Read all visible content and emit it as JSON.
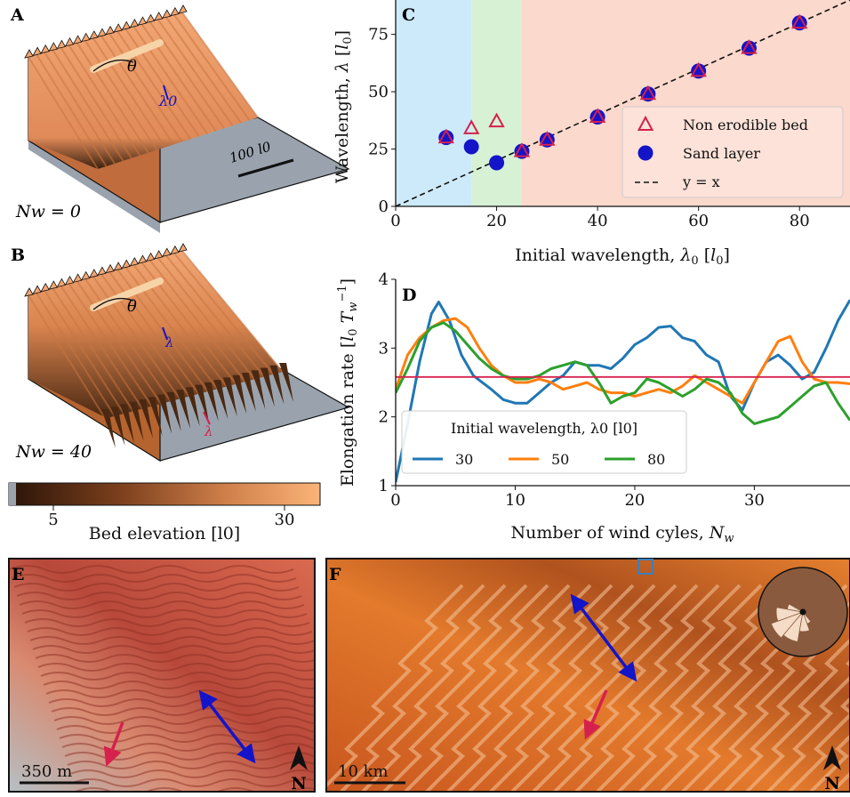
{
  "panels": {
    "a": {
      "label": "A",
      "theta": "θ",
      "lambda0": "λ0",
      "scalebar": "100 l0",
      "nw": "Nw = 0"
    },
    "b": {
      "label": "B",
      "theta": "θ",
      "lambda1": "λ",
      "lambda2": "λ",
      "nw": "Nw = 40"
    },
    "colorbar": {
      "label": "Bed elevation [l0]",
      "tick_low": "5",
      "tick_high": "30"
    },
    "e": {
      "label": "E",
      "scalebar": "350 m",
      "north": "N"
    },
    "f": {
      "label": "F",
      "scalebar": "10 km",
      "north": "N"
    }
  },
  "colors": {
    "nonerodible": "#d6214d",
    "sand": "#1414c8",
    "line30": "#1f77b4",
    "line50": "#ff7f0e",
    "line80": "#2ca02c",
    "mean": "#d6214d",
    "region1": "#cdeafb",
    "region2": "#d6f1d4",
    "region3": "#fbd9cc"
  },
  "chart_data": [
    {
      "panel": "C",
      "type": "scatter",
      "xlabel": "Initial wavelength, λ0 [l0]",
      "ylabel": "Wavelength, λ [l0]",
      "xlim": [
        0,
        90
      ],
      "ylim": [
        0,
        90
      ],
      "xticks": [
        "0",
        "20",
        "40",
        "60",
        "80"
      ],
      "yticks": [
        "0",
        "25",
        "50",
        "75"
      ],
      "regions": [
        [
          0,
          15
        ],
        [
          15,
          25
        ],
        [
          25,
          90
        ]
      ],
      "series": [
        {
          "name": "Non erodible bed",
          "x": [
            10,
            15,
            20,
            25,
            30,
            40,
            50,
            60,
            70,
            80
          ],
          "y": [
            30,
            34,
            37,
            24,
            29,
            39,
            49,
            59,
            69,
            80
          ]
        },
        {
          "name": "Sand layer",
          "x": [
            10,
            15,
            20,
            25,
            30,
            40,
            50,
            60,
            70,
            80
          ],
          "y": [
            30,
            26,
            19,
            24,
            29,
            39,
            49,
            59,
            69,
            80
          ]
        },
        {
          "name": "y = x",
          "x": [
            0,
            90
          ],
          "y": [
            0,
            90
          ]
        }
      ],
      "legend": "bottom-right"
    },
    {
      "panel": "D",
      "type": "line",
      "xlabel": "Number of wind cyles, Nw",
      "ylabel": "Elongation rate [l0 Tw−1]",
      "xlim": [
        0,
        38
      ],
      "ylim": [
        1,
        4
      ],
      "xticks": [
        "0",
        "10",
        "20",
        "30"
      ],
      "yticks": [
        "1",
        "2",
        "3",
        "4"
      ],
      "mean_value": 2.58,
      "legend_title": "Initial wavelength, λ0 [l0]",
      "legend": "lower-left",
      "series": [
        {
          "name": "30",
          "x": [
            0,
            1,
            2,
            3,
            3.6,
            4.5,
            5.5,
            6.5,
            8,
            9,
            10,
            11,
            12,
            13,
            14,
            15,
            16,
            17,
            18,
            19,
            20,
            21,
            22,
            23,
            24,
            25,
            26,
            27,
            28,
            29,
            30,
            31,
            32,
            33,
            34,
            35,
            36,
            37,
            38
          ],
          "y": [
            1.05,
            1.9,
            2.8,
            3.5,
            3.67,
            3.4,
            2.9,
            2.6,
            2.4,
            2.25,
            2.2,
            2.2,
            2.35,
            2.5,
            2.6,
            2.8,
            2.75,
            2.75,
            2.7,
            2.85,
            3.05,
            3.15,
            3.3,
            3.32,
            3.15,
            3.1,
            2.9,
            2.8,
            2.3,
            2.1,
            2.5,
            2.8,
            2.9,
            2.75,
            2.55,
            2.65,
            3.0,
            3.4,
            3.7
          ]
        },
        {
          "name": "50",
          "x": [
            0,
            1,
            2,
            3,
            4,
            5,
            6,
            7,
            8,
            9,
            10,
            11,
            12,
            13,
            14,
            15,
            16,
            17,
            18,
            19,
            20,
            21,
            22,
            23,
            24,
            25,
            26,
            27,
            28,
            29,
            30,
            31,
            32,
            33,
            34,
            35,
            36,
            37,
            38
          ],
          "y": [
            2.4,
            2.9,
            3.15,
            3.3,
            3.4,
            3.43,
            3.3,
            3.0,
            2.75,
            2.6,
            2.5,
            2.5,
            2.55,
            2.5,
            2.4,
            2.45,
            2.5,
            2.4,
            2.35,
            2.35,
            2.3,
            2.35,
            2.4,
            2.35,
            2.45,
            2.6,
            2.5,
            2.4,
            2.3,
            2.2,
            2.5,
            2.8,
            3.1,
            3.17,
            2.8,
            2.55,
            2.5,
            2.5,
            2.48
          ]
        },
        {
          "name": "80",
          "x": [
            0,
            1,
            2,
            3,
            4,
            5,
            6,
            7,
            8,
            9,
            10,
            11,
            12,
            13,
            14,
            15,
            16,
            17,
            18,
            19,
            20,
            21,
            22,
            23,
            24,
            25,
            26,
            27,
            28,
            29,
            30,
            31,
            32,
            33,
            34,
            35,
            36,
            37,
            38
          ],
          "y": [
            2.35,
            2.7,
            3.1,
            3.3,
            3.37,
            3.25,
            3.05,
            2.85,
            2.7,
            2.6,
            2.55,
            2.55,
            2.6,
            2.7,
            2.75,
            2.8,
            2.75,
            2.5,
            2.2,
            2.3,
            2.35,
            2.55,
            2.5,
            2.4,
            2.3,
            2.4,
            2.55,
            2.5,
            2.35,
            2.05,
            1.9,
            1.95,
            2.0,
            2.15,
            2.3,
            2.45,
            2.5,
            2.2,
            1.95
          ]
        }
      ]
    },
    {
      "panel": "colorbar",
      "type": "heatmap",
      "range": [
        0,
        35
      ],
      "ticks": [
        "5",
        "30"
      ],
      "label": "Bed elevation [l0]"
    }
  ]
}
